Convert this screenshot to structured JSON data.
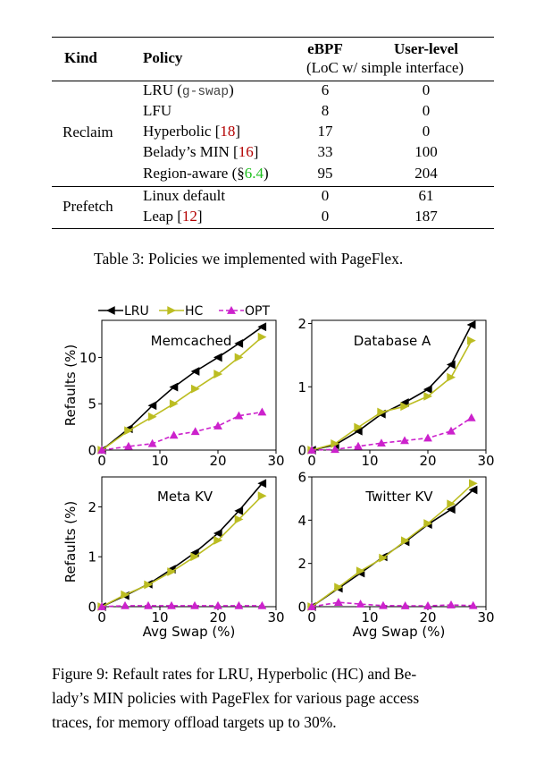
{
  "table": {
    "headers": {
      "kind": "Kind",
      "policy": "Policy",
      "ebpf": "eBPF",
      "userlevel": "User-level",
      "subheader": "(LoC w/ simple interface)"
    },
    "groups": [
      {
        "kind": "Reclaim",
        "rows": [
          {
            "name": "LRU (",
            "code": "g-swap",
            "suffix": ")",
            "ebpf": "6",
            "user": "0"
          },
          {
            "name": "LFU",
            "ebpf": "8",
            "user": "0"
          },
          {
            "name": "Hyperbolic [",
            "ref": "18",
            "suffix": "]",
            "ebpf": "17",
            "user": "0"
          },
          {
            "name": "Belady’s MIN [",
            "ref": "16",
            "suffix": "]",
            "ebpf": "33",
            "user": "100"
          },
          {
            "name": "Region-aware (§",
            "sec": "6.4",
            "suffix": ")",
            "ebpf": "95",
            "user": "204"
          }
        ]
      },
      {
        "kind": "Prefetch",
        "rows": [
          {
            "name": "Linux default",
            "ebpf": "0",
            "user": "61"
          },
          {
            "name": "Leap [",
            "ref": "12",
            "suffix": "]",
            "ebpf": "0",
            "user": "187"
          }
        ]
      }
    ],
    "caption": "Table 3: Policies we implemented with PageFlex."
  },
  "figure": {
    "caption_lines": [
      "Figure 9: Refault rates for LRU, Hyperbolic (HC) and Be-",
      "lady’s MIN policies with PageFlex for various page access",
      "traces, for memory offload targets up to 30%."
    ]
  },
  "chart_data": [
    {
      "type": "line",
      "title": "Memcached",
      "xlabel": "",
      "ylabel": "Refaults (%)",
      "xlim": [
        0,
        30
      ],
      "ylim": [
        0,
        14
      ],
      "xticks": [
        "0",
        "10",
        "20",
        "30"
      ],
      "yticks": [
        "0",
        "5",
        "10"
      ],
      "series": [
        {
          "name": "LRU",
          "x": [
            0,
            4.6,
            8.7,
            12.4,
            16.1,
            20.0,
            23.6,
            27.6
          ],
          "y": [
            0,
            2.3,
            4.8,
            6.8,
            8.5,
            10.0,
            11.5,
            13.3
          ]
        },
        {
          "name": "HC",
          "x": [
            0,
            4.6,
            8.7,
            12.4,
            16.1,
            20.0,
            23.6,
            27.6
          ],
          "y": [
            0,
            2.1,
            3.6,
            5.0,
            6.6,
            8.2,
            10.0,
            12.2
          ]
        },
        {
          "name": "OPT",
          "x": [
            0,
            4.6,
            8.7,
            12.4,
            16.1,
            20.0,
            23.6,
            27.6
          ],
          "y": [
            0,
            0.4,
            0.7,
            1.6,
            2.0,
            2.6,
            3.7,
            4.1
          ]
        }
      ]
    },
    {
      "type": "line",
      "title": "Database A",
      "xlabel": "",
      "ylabel": "",
      "xlim": [
        0,
        30
      ],
      "ylim": [
        0,
        2.05
      ],
      "xticks": [
        "0",
        "10",
        "20",
        "30"
      ],
      "yticks": [
        "0",
        "1",
        "2"
      ],
      "series": [
        {
          "name": "LRU",
          "x": [
            0,
            4,
            8,
            12,
            16,
            20,
            24,
            27.5
          ],
          "y": [
            0,
            0.08,
            0.3,
            0.57,
            0.75,
            0.96,
            1.35,
            1.98
          ]
        },
        {
          "name": "HC",
          "x": [
            0,
            4,
            8,
            12,
            16,
            20,
            24,
            27.5
          ],
          "y": [
            0,
            0.1,
            0.36,
            0.6,
            0.69,
            0.85,
            1.15,
            1.73
          ]
        },
        {
          "name": "OPT",
          "x": [
            0,
            4,
            8,
            12,
            16,
            20,
            24,
            27.5
          ],
          "y": [
            0,
            0.01,
            0.06,
            0.11,
            0.15,
            0.19,
            0.3,
            0.51
          ]
        }
      ]
    },
    {
      "type": "line",
      "title": "Meta KV",
      "xlabel": "Avg Swap (%)",
      "ylabel": "Refaults (%)",
      "xlim": [
        0,
        30
      ],
      "ylim": [
        0,
        2.6
      ],
      "xticks": [
        "0",
        "10",
        "20",
        "30"
      ],
      "yticks": [
        "0",
        "1",
        "2"
      ],
      "series": [
        {
          "name": "LRU",
          "x": [
            0,
            4,
            8,
            12,
            16,
            20,
            23.6,
            27.6
          ],
          "y": [
            0,
            0.22,
            0.45,
            0.75,
            1.08,
            1.47,
            1.92,
            2.47
          ]
        },
        {
          "name": "HC",
          "x": [
            0,
            4,
            8,
            12,
            16,
            20,
            23.6,
            27.6
          ],
          "y": [
            0,
            0.24,
            0.44,
            0.7,
            1.0,
            1.33,
            1.75,
            2.22
          ]
        },
        {
          "name": "OPT",
          "x": [
            0,
            4,
            8,
            12,
            16,
            20,
            23.6,
            27.6
          ],
          "y": [
            0,
            0.02,
            0.02,
            0.02,
            0.02,
            0.02,
            0.02,
            0.02
          ]
        }
      ]
    },
    {
      "type": "line",
      "title": "Twitter KV",
      "xlabel": "Avg Swap (%)",
      "ylabel": "",
      "xlim": [
        0,
        30
      ],
      "ylim": [
        0,
        6
      ],
      "xticks": [
        "0",
        "10",
        "20",
        "30"
      ],
      "yticks": [
        "0",
        "2",
        "4",
        "6"
      ],
      "series": [
        {
          "name": "LRU",
          "x": [
            0,
            4.6,
            8.4,
            12.3,
            16.1,
            20.0,
            24.0,
            27.8
          ],
          "y": [
            0,
            0.85,
            1.55,
            2.3,
            3.0,
            3.8,
            4.5,
            5.4
          ]
        },
        {
          "name": "HC",
          "x": [
            0,
            4.6,
            8.4,
            12.3,
            16.1,
            20.0,
            24.0,
            27.8
          ],
          "y": [
            0,
            0.9,
            1.65,
            2.25,
            3.05,
            3.85,
            4.75,
            5.7
          ]
        },
        {
          "name": "OPT",
          "x": [
            0,
            4.6,
            8.4,
            12.3,
            16.1,
            20.0,
            24.0,
            27.8
          ],
          "y": [
            0,
            0.2,
            0.12,
            0.05,
            0.04,
            0.04,
            0.08,
            0.05
          ]
        }
      ]
    }
  ],
  "legend": [
    {
      "name": "LRU",
      "color": "#000000",
      "marker": "triangle-left",
      "dash": false
    },
    {
      "name": "HC",
      "color": "#bcbd22",
      "marker": "triangle-right",
      "dash": false
    },
    {
      "name": "OPT",
      "color": "#cc22cc",
      "marker": "triangle-up",
      "dash": true
    }
  ]
}
